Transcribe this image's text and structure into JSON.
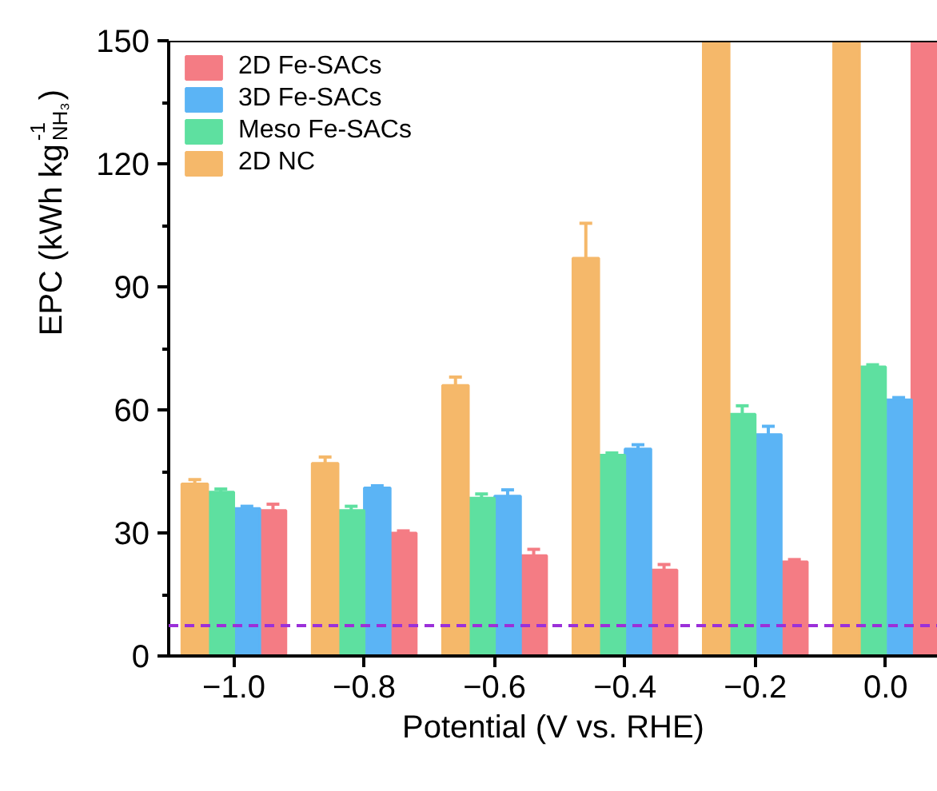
{
  "chart_data": {
    "type": "bar",
    "xlabel": "Potential (V vs. RHE)",
    "ylabel": "EPC (kWh kg$^{-1}$$_{NH₃}$)",
    "x": [
      -1.0,
      -0.8,
      -0.6,
      -0.4,
      -0.2,
      0.0
    ],
    "xlim": [
      -1.1,
      0.08
    ],
    "xticks": [
      {
        "value": -1.0,
        "label": "−1.0"
      },
      {
        "value": -0.8,
        "label": "−0.8"
      },
      {
        "value": -0.6,
        "label": "−0.6"
      },
      {
        "value": -0.4,
        "label": "−0.4"
      },
      {
        "value": -0.2,
        "label": "−0.2"
      },
      {
        "value": 0.0,
        "label": "0.0"
      }
    ],
    "ylim": [
      0,
      150
    ],
    "yticks": [
      0,
      30,
      60,
      90,
      120,
      150
    ],
    "series": [
      {
        "name": "2D Fe-SACs",
        "color": "#f47c84",
        "values": [
          35.5,
          30,
          24.5,
          21,
          23,
          150
        ],
        "errors": [
          1.5,
          0.5,
          1.5,
          1.3,
          0.5,
          null
        ]
      },
      {
        "name": "3D Fe-SACs",
        "color": "#5bb4f5",
        "values": [
          36,
          41,
          39,
          50.5,
          54,
          62.5
        ],
        "errors": [
          0.5,
          0.5,
          1.5,
          1,
          2,
          0.5
        ]
      },
      {
        "name": "Meso Fe-SACs",
        "color": "#5ee0a0",
        "values": [
          40,
          35.5,
          38.5,
          49,
          59,
          70.5
        ],
        "errors": [
          0.7,
          1,
          1,
          0.5,
          2,
          0.5
        ]
      },
      {
        "name": "2D NC",
        "color": "#f5b86a",
        "values": [
          42,
          47,
          66,
          97,
          150,
          150
        ],
        "errors": [
          1,
          1.5,
          2,
          8.5,
          null,
          null
        ]
      }
    ],
    "ref_lines": [
      {
        "axis": "y",
        "value": 7.4,
        "color": "#9b30d9",
        "line_style": "dashed"
      }
    ],
    "legend": "top left",
    "grid": false
  }
}
